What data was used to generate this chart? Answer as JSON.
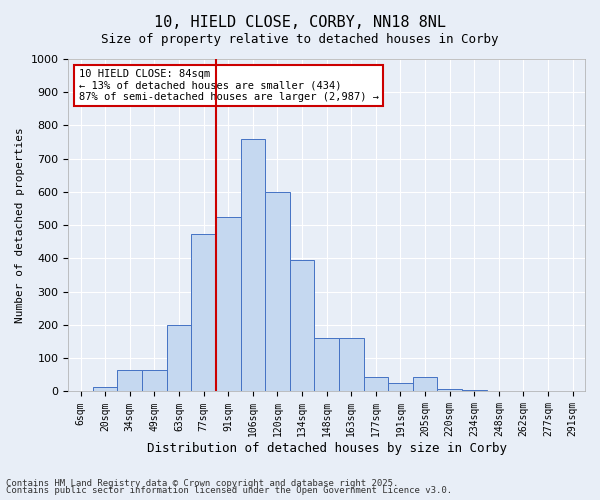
{
  "title1": "10, HIELD CLOSE, CORBY, NN18 8NL",
  "title2": "Size of property relative to detached houses in Corby",
  "xlabel": "Distribution of detached houses by size in Corby",
  "ylabel": "Number of detached properties",
  "categories": [
    "6sqm",
    "20sqm",
    "34sqm",
    "49sqm",
    "63sqm",
    "77sqm",
    "91sqm",
    "106sqm",
    "120sqm",
    "134sqm",
    "148sqm",
    "163sqm",
    "177sqm",
    "191sqm",
    "205sqm",
    "220sqm",
    "234sqm",
    "248sqm",
    "262sqm",
    "277sqm",
    "291sqm"
  ],
  "values": [
    0,
    13,
    65,
    65,
    200,
    475,
    525,
    760,
    600,
    395,
    160,
    160,
    43,
    25,
    43,
    8,
    5,
    2,
    1,
    1,
    1
  ],
  "bar_color": "#c5d8f0",
  "bar_edge_color": "#4472c4",
  "background_color": "#e8eef7",
  "grid_color": "#ffffff",
  "vline_x": 5.5,
  "vline_color": "#cc0000",
  "annotation_text": "10 HIELD CLOSE: 84sqm\n← 13% of detached houses are smaller (434)\n87% of semi-detached houses are larger (2,987) →",
  "annotation_box_color": "#ffffff",
  "annotation_box_edge": "#cc0000",
  "ylim": [
    0,
    1000
  ],
  "yticks": [
    0,
    100,
    200,
    300,
    400,
    500,
    600,
    700,
    800,
    900,
    1000
  ],
  "footnote1": "Contains HM Land Registry data © Crown copyright and database right 2025.",
  "footnote2": "Contains public sector information licensed under the Open Government Licence v3.0."
}
